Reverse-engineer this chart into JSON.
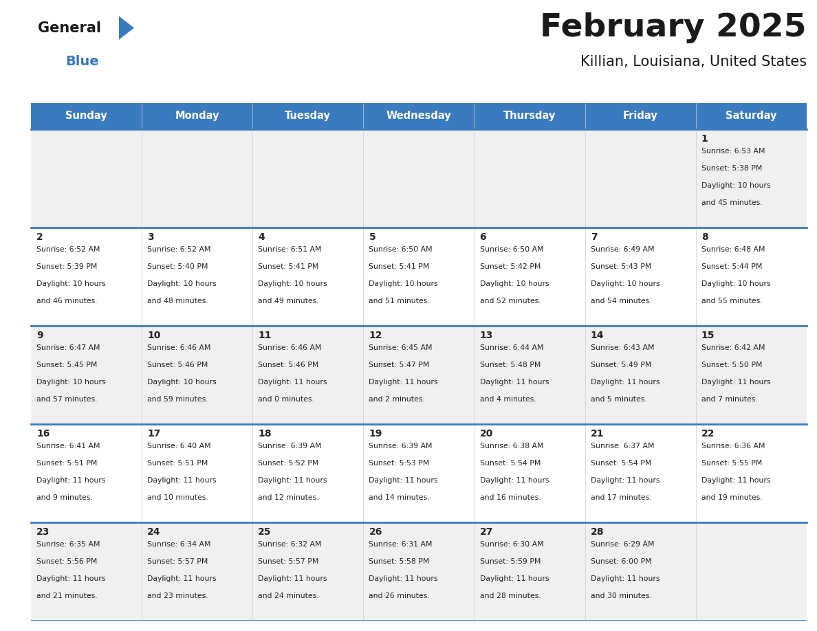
{
  "title": "February 2025",
  "subtitle": "Killian, Louisiana, United States",
  "header_color": "#3a7bbf",
  "header_text_color": "#ffffff",
  "day_names": [
    "Sunday",
    "Monday",
    "Tuesday",
    "Wednesday",
    "Thursday",
    "Friday",
    "Saturday"
  ],
  "bg_color_even": "#f0f0f0",
  "bg_color_odd": "#ffffff",
  "text_color": "#222222",
  "line_color": "#3a7bbf",
  "days": [
    {
      "date": 1,
      "row": 0,
      "col": 6,
      "sunrise": "6:53 AM",
      "sunset": "5:38 PM",
      "daylight_h": "10 hours",
      "daylight_m": "and 45 minutes."
    },
    {
      "date": 2,
      "row": 1,
      "col": 0,
      "sunrise": "6:52 AM",
      "sunset": "5:39 PM",
      "daylight_h": "10 hours",
      "daylight_m": "and 46 minutes."
    },
    {
      "date": 3,
      "row": 1,
      "col": 1,
      "sunrise": "6:52 AM",
      "sunset": "5:40 PM",
      "daylight_h": "10 hours",
      "daylight_m": "and 48 minutes."
    },
    {
      "date": 4,
      "row": 1,
      "col": 2,
      "sunrise": "6:51 AM",
      "sunset": "5:41 PM",
      "daylight_h": "10 hours",
      "daylight_m": "and 49 minutes."
    },
    {
      "date": 5,
      "row": 1,
      "col": 3,
      "sunrise": "6:50 AM",
      "sunset": "5:41 PM",
      "daylight_h": "10 hours",
      "daylight_m": "and 51 minutes."
    },
    {
      "date": 6,
      "row": 1,
      "col": 4,
      "sunrise": "6:50 AM",
      "sunset": "5:42 PM",
      "daylight_h": "10 hours",
      "daylight_m": "and 52 minutes."
    },
    {
      "date": 7,
      "row": 1,
      "col": 5,
      "sunrise": "6:49 AM",
      "sunset": "5:43 PM",
      "daylight_h": "10 hours",
      "daylight_m": "and 54 minutes."
    },
    {
      "date": 8,
      "row": 1,
      "col": 6,
      "sunrise": "6:48 AM",
      "sunset": "5:44 PM",
      "daylight_h": "10 hours",
      "daylight_m": "and 55 minutes."
    },
    {
      "date": 9,
      "row": 2,
      "col": 0,
      "sunrise": "6:47 AM",
      "sunset": "5:45 PM",
      "daylight_h": "10 hours",
      "daylight_m": "and 57 minutes."
    },
    {
      "date": 10,
      "row": 2,
      "col": 1,
      "sunrise": "6:46 AM",
      "sunset": "5:46 PM",
      "daylight_h": "10 hours",
      "daylight_m": "and 59 minutes."
    },
    {
      "date": 11,
      "row": 2,
      "col": 2,
      "sunrise": "6:46 AM",
      "sunset": "5:46 PM",
      "daylight_h": "11 hours",
      "daylight_m": "and 0 minutes."
    },
    {
      "date": 12,
      "row": 2,
      "col": 3,
      "sunrise": "6:45 AM",
      "sunset": "5:47 PM",
      "daylight_h": "11 hours",
      "daylight_m": "and 2 minutes."
    },
    {
      "date": 13,
      "row": 2,
      "col": 4,
      "sunrise": "6:44 AM",
      "sunset": "5:48 PM",
      "daylight_h": "11 hours",
      "daylight_m": "and 4 minutes."
    },
    {
      "date": 14,
      "row": 2,
      "col": 5,
      "sunrise": "6:43 AM",
      "sunset": "5:49 PM",
      "daylight_h": "11 hours",
      "daylight_m": "and 5 minutes."
    },
    {
      "date": 15,
      "row": 2,
      "col": 6,
      "sunrise": "6:42 AM",
      "sunset": "5:50 PM",
      "daylight_h": "11 hours",
      "daylight_m": "and 7 minutes."
    },
    {
      "date": 16,
      "row": 3,
      "col": 0,
      "sunrise": "6:41 AM",
      "sunset": "5:51 PM",
      "daylight_h": "11 hours",
      "daylight_m": "and 9 minutes."
    },
    {
      "date": 17,
      "row": 3,
      "col": 1,
      "sunrise": "6:40 AM",
      "sunset": "5:51 PM",
      "daylight_h": "11 hours",
      "daylight_m": "and 10 minutes."
    },
    {
      "date": 18,
      "row": 3,
      "col": 2,
      "sunrise": "6:39 AM",
      "sunset": "5:52 PM",
      "daylight_h": "11 hours",
      "daylight_m": "and 12 minutes."
    },
    {
      "date": 19,
      "row": 3,
      "col": 3,
      "sunrise": "6:39 AM",
      "sunset": "5:53 PM",
      "daylight_h": "11 hours",
      "daylight_m": "and 14 minutes."
    },
    {
      "date": 20,
      "row": 3,
      "col": 4,
      "sunrise": "6:38 AM",
      "sunset": "5:54 PM",
      "daylight_h": "11 hours",
      "daylight_m": "and 16 minutes."
    },
    {
      "date": 21,
      "row": 3,
      "col": 5,
      "sunrise": "6:37 AM",
      "sunset": "5:54 PM",
      "daylight_h": "11 hours",
      "daylight_m": "and 17 minutes."
    },
    {
      "date": 22,
      "row": 3,
      "col": 6,
      "sunrise": "6:36 AM",
      "sunset": "5:55 PM",
      "daylight_h": "11 hours",
      "daylight_m": "and 19 minutes."
    },
    {
      "date": 23,
      "row": 4,
      "col": 0,
      "sunrise": "6:35 AM",
      "sunset": "5:56 PM",
      "daylight_h": "11 hours",
      "daylight_m": "and 21 minutes."
    },
    {
      "date": 24,
      "row": 4,
      "col": 1,
      "sunrise": "6:34 AM",
      "sunset": "5:57 PM",
      "daylight_h": "11 hours",
      "daylight_m": "and 23 minutes."
    },
    {
      "date": 25,
      "row": 4,
      "col": 2,
      "sunrise": "6:32 AM",
      "sunset": "5:57 PM",
      "daylight_h": "11 hours",
      "daylight_m": "and 24 minutes."
    },
    {
      "date": 26,
      "row": 4,
      "col": 3,
      "sunrise": "6:31 AM",
      "sunset": "5:58 PM",
      "daylight_h": "11 hours",
      "daylight_m": "and 26 minutes."
    },
    {
      "date": 27,
      "row": 4,
      "col": 4,
      "sunrise": "6:30 AM",
      "sunset": "5:59 PM",
      "daylight_h": "11 hours",
      "daylight_m": "and 28 minutes."
    },
    {
      "date": 28,
      "row": 4,
      "col": 5,
      "sunrise": "6:29 AM",
      "sunset": "6:00 PM",
      "daylight_h": "11 hours",
      "daylight_m": "and 30 minutes."
    }
  ],
  "num_rows": 5,
  "num_cols": 7
}
